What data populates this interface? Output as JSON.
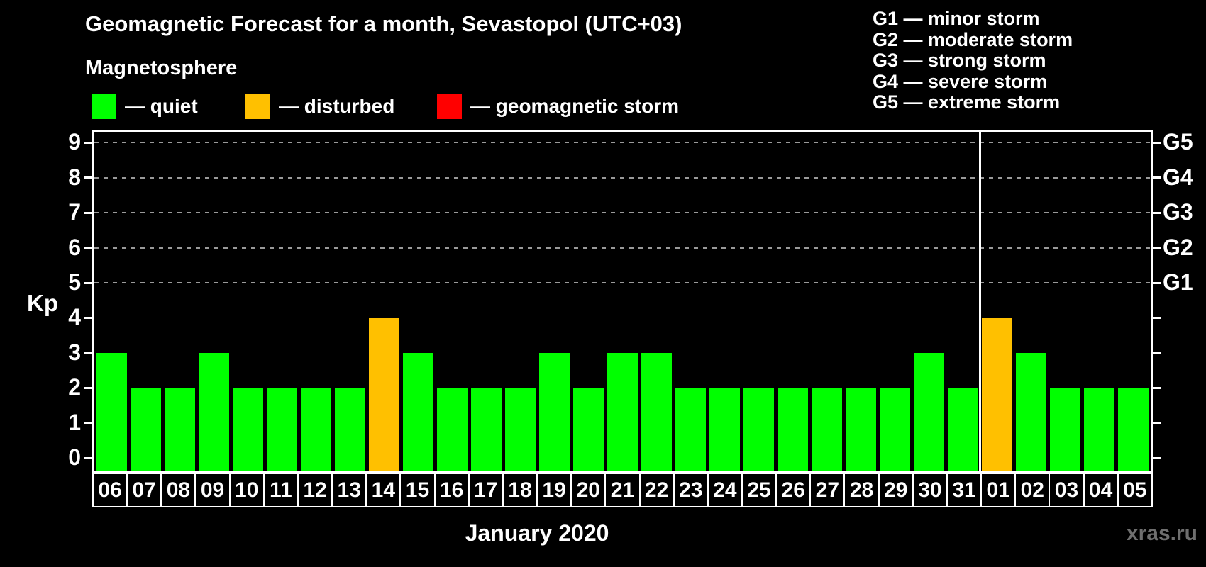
{
  "header": {
    "title": "Geomagnetic Forecast for a month, Sevastopol (UTC+03)",
    "subtitle": "Magnetosphere"
  },
  "legend": {
    "items": [
      {
        "key": "quiet",
        "label": "— quiet",
        "color": "#00ff00"
      },
      {
        "key": "disturbed",
        "label": "— disturbed",
        "color": "#ffc000"
      },
      {
        "key": "storm",
        "label": "— geomagnetic storm",
        "color": "#ff0000"
      }
    ]
  },
  "g_legend": {
    "items": [
      "G1 — minor storm",
      "G2 — moderate storm",
      "G3 — strong storm",
      "G4 — severe storm",
      "G5 — extreme storm"
    ]
  },
  "axis": {
    "kp_label": "Kp",
    "y_ticks": [
      "0",
      "1",
      "2",
      "3",
      "4",
      "5",
      "6",
      "7",
      "8",
      "9"
    ],
    "right_labels": [
      {
        "label": "G1",
        "kp": 5
      },
      {
        "label": "G2",
        "kp": 6
      },
      {
        "label": "G3",
        "kp": 7
      },
      {
        "label": "G4",
        "kp": 8
      },
      {
        "label": "G5",
        "kp": 9
      }
    ],
    "x_label": "January 2020"
  },
  "watermark": "xras.ru",
  "chart_data": {
    "type": "bar",
    "title": "Geomagnetic Forecast for a month, Sevastopol (UTC+03)",
    "ylabel": "Kp",
    "xlabel": "January 2020",
    "ylim": [
      0,
      9
    ],
    "grid": "dashed horizontal at Kp 5-9 (G1-G5)",
    "gridlines_at": [
      5,
      6,
      7,
      8,
      9
    ],
    "legend_position": "top-left",
    "categories": [
      "06",
      "07",
      "08",
      "09",
      "10",
      "11",
      "12",
      "13",
      "14",
      "15",
      "16",
      "17",
      "18",
      "19",
      "20",
      "21",
      "22",
      "23",
      "24",
      "25",
      "26",
      "27",
      "28",
      "29",
      "30",
      "31",
      "01",
      "02",
      "03",
      "04",
      "05"
    ],
    "series": [
      {
        "name": "Kp forecast",
        "values": [
          3,
          2,
          2,
          3,
          2,
          2,
          2,
          2,
          4,
          3,
          2,
          2,
          2,
          3,
          2,
          3,
          3,
          2,
          2,
          2,
          2,
          2,
          2,
          2,
          3,
          2,
          4,
          3,
          2,
          2,
          2
        ]
      }
    ],
    "statuses": [
      "quiet",
      "quiet",
      "quiet",
      "quiet",
      "quiet",
      "quiet",
      "quiet",
      "quiet",
      "disturbed",
      "quiet",
      "quiet",
      "quiet",
      "quiet",
      "quiet",
      "quiet",
      "quiet",
      "quiet",
      "quiet",
      "quiet",
      "quiet",
      "quiet",
      "quiet",
      "quiet",
      "quiet",
      "quiet",
      "quiet",
      "disturbed",
      "quiet",
      "quiet",
      "quiet",
      "quiet"
    ],
    "status_colors": {
      "quiet": "#00ff00",
      "disturbed": "#ffc000",
      "storm": "#ff0000"
    },
    "month_boundary_after_index": 25
  }
}
